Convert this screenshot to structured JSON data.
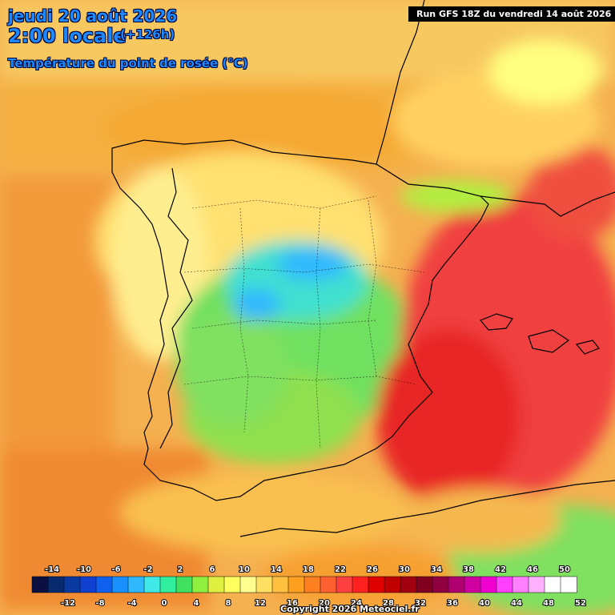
{
  "header": {
    "date": "jeudi 20 août 2026",
    "time": "2:00 locale",
    "lead": "(+126h)",
    "parameter": "Température du point de rosée (°C)",
    "run": "Run GFS 18Z du vendredi 14 août 2026"
  },
  "footer": {
    "copyright": "Copyright 2026 Meteociel.fr"
  },
  "legend": {
    "ticks_top": [
      "-14",
      "-10",
      "-6",
      "-2",
      "2",
      "6",
      "10",
      "14",
      "18",
      "22",
      "26",
      "30",
      "34",
      "38",
      "42",
      "46",
      "50"
    ],
    "ticks_bottom": [
      "-12",
      "-8",
      "-4",
      "0",
      "4",
      "8",
      "12",
      "16",
      "20",
      "24",
      "28",
      "32",
      "36",
      "40",
      "44",
      "48",
      "52"
    ],
    "colors": [
      "#0a1040",
      "#0a2a70",
      "#0a3aa0",
      "#1040d0",
      "#1060f0",
      "#1890ff",
      "#30b8ff",
      "#40e8e8",
      "#30f0a0",
      "#40e060",
      "#90f040",
      "#e0f040",
      "#ffff60",
      "#ffff90",
      "#ffe060",
      "#ffc040",
      "#ffa020",
      "#ff8020",
      "#ff6030",
      "#ff4040",
      "#ff2020",
      "#e00000",
      "#c00000",
      "#a00010",
      "#800020",
      "#900040",
      "#b00070",
      "#d000a0",
      "#f000d0",
      "#ff40ff",
      "#ff80ff",
      "#ffb0ff",
      "#ffffff",
      "#ffffff"
    ]
  },
  "map": {
    "regions": [
      "Portugal",
      "Espagne",
      "Mer Méditerranée",
      "Océan Atlantique",
      "Afrique du Nord",
      "France"
    ]
  }
}
